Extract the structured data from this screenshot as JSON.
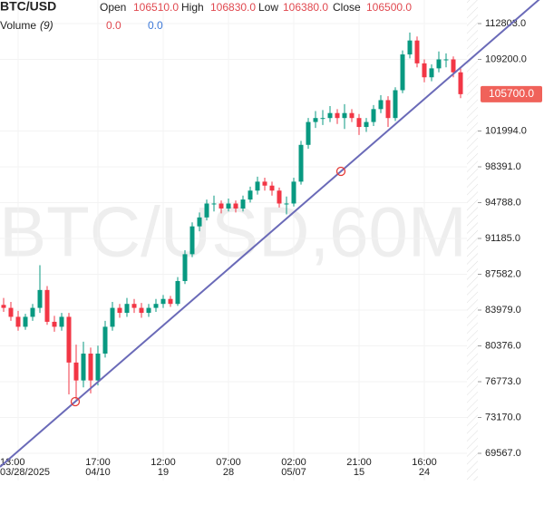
{
  "header": {
    "symbol": "BTC/USD",
    "fields": [
      {
        "name": "Open",
        "value": "106510.0"
      },
      {
        "name": "High",
        "value": "106830.0"
      },
      {
        "name": "Low",
        "value": "106380.0"
      },
      {
        "name": "Close",
        "value": "106500.0"
      }
    ],
    "volume": {
      "name": "Volume",
      "period": "(9)",
      "values": [
        "0.0",
        "0.0"
      ]
    }
  },
  "watermark": "BTC/USD,60M",
  "chart_data": {
    "type": "candlestick",
    "up_color": "#089981",
    "down_color": "#f23645",
    "xlim": [
      -0.5,
      63.875
    ],
    "xticks": [
      {
        "value": 2,
        "label": "13:00",
        "date": "03/28/2025"
      },
      {
        "value": 13,
        "label": "17:00",
        "date": "04/10"
      },
      {
        "value": 22,
        "label": "12:00",
        "date": "19"
      },
      {
        "value": 31,
        "label": "07:00",
        "date": "28"
      },
      {
        "value": 40,
        "label": "02:00",
        "date": "05/07"
      },
      {
        "value": 49,
        "label": "21:00",
        "date": "15"
      },
      {
        "value": 58,
        "label": "16:00",
        "date": "24"
      }
    ],
    "ylim": [
      66831,
      115175
    ],
    "yticks": [
      {
        "value": 112803,
        "label": "112803.0"
      },
      {
        "value": 109200,
        "label": "109200.0"
      },
      {
        "value": 101994,
        "label": "101994.0"
      },
      {
        "value": 98391,
        "label": "98391.0"
      },
      {
        "value": 94788,
        "label": "94788.0"
      },
      {
        "value": 91185,
        "label": "91185.0"
      },
      {
        "value": 87582,
        "label": "87582.0"
      },
      {
        "value": 83979,
        "label": "83979.0"
      },
      {
        "value": 80376,
        "label": "80376.0"
      },
      {
        "value": 76773,
        "label": "76773.0"
      },
      {
        "value": 73170,
        "label": "73170.0"
      },
      {
        "value": 69567,
        "label": "69567.0"
      }
    ],
    "grid": true,
    "last_price": {
      "value": 105700,
      "label": "105700.0",
      "color": "#f0625a"
    },
    "trendline": {
      "color": "#6a6ab8",
      "points": [
        [
          9.875,
          74768
        ],
        [
          46.5,
          97935
        ]
      ]
    },
    "open": [
      84500,
      84200,
      83300,
      82300,
      83300,
      84200,
      86000,
      82800,
      82300,
      83300,
      78700,
      76900,
      79600,
      76900,
      79600,
      82300,
      84200,
      83700,
      84600,
      84200,
      83700,
      84200,
      84600,
      85100,
      84600,
      86900,
      89600,
      92400,
      93300,
      94700,
      94700,
      94200,
      94700,
      94200,
      95100,
      96000,
      96900,
      96500,
      96000,
      94700,
      94700,
      96900,
      100600,
      102900,
      103300,
      103300,
      103800,
      103300,
      103800,
      103300,
      102400,
      102900,
      104200,
      105100,
      103300,
      106100,
      109700,
      111100,
      108800,
      107400,
      108300,
      109200,
      109200,
      107900
    ],
    "high": [
      85200,
      84800,
      83900,
      83600,
      84600,
      88500,
      86400,
      83400,
      83700,
      83700,
      80500,
      80800,
      80200,
      80400,
      82900,
      84800,
      84600,
      85200,
      85100,
      84700,
      84600,
      85100,
      85500,
      85400,
      87300,
      90000,
      92800,
      93800,
      95100,
      95500,
      95000,
      95200,
      95000,
      95500,
      96400,
      97400,
      97300,
      96900,
      96300,
      95400,
      97300,
      101000,
      103300,
      104000,
      104100,
      104500,
      104200,
      104700,
      104200,
      103700,
      103300,
      104600,
      105600,
      105500,
      106400,
      110100,
      111900,
      111500,
      109200,
      108700,
      110000,
      109800,
      109500,
      108300
    ],
    "low": [
      83800,
      82900,
      81900,
      82000,
      82900,
      83700,
      82500,
      81800,
      81900,
      75500,
      75000,
      76200,
      75600,
      76400,
      79200,
      81900,
      83200,
      83300,
      83700,
      83200,
      83300,
      83800,
      84200,
      84300,
      84400,
      86600,
      89300,
      91900,
      93000,
      93900,
      93700,
      93900,
      93800,
      93900,
      94800,
      95600,
      96000,
      95500,
      94300,
      93600,
      94400,
      96600,
      100200,
      102300,
      102600,
      102900,
      102700,
      102200,
      102900,
      101600,
      101900,
      102500,
      103800,
      102400,
      103000,
      105800,
      109300,
      108400,
      106900,
      107000,
      107900,
      108400,
      107400,
      105300
    ],
    "close": [
      84200,
      83300,
      82300,
      83300,
      84200,
      86000,
      82800,
      82300,
      83300,
      78700,
      76900,
      79600,
      76900,
      79600,
      82300,
      84200,
      83700,
      84600,
      84200,
      83700,
      84200,
      84600,
      85100,
      84600,
      86900,
      89600,
      92400,
      93300,
      94700,
      94700,
      94200,
      94700,
      94200,
      95100,
      96000,
      96900,
      96500,
      96000,
      94700,
      94700,
      96900,
      100600,
      102900,
      103300,
      103300,
      103800,
      103300,
      103800,
      103300,
      102400,
      102900,
      104200,
      105100,
      103300,
      106100,
      109700,
      111100,
      108800,
      107400,
      108300,
      109200,
      109200,
      107900,
      105700
    ]
  }
}
